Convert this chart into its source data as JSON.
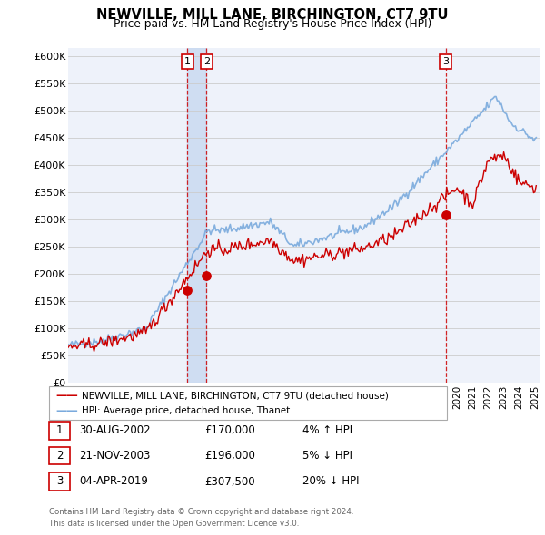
{
  "title": "NEWVILLE, MILL LANE, BIRCHINGTON, CT7 9TU",
  "subtitle": "Price paid vs. HM Land Registry's House Price Index (HPI)",
  "ylabel_ticks": [
    "£0",
    "£50K",
    "£100K",
    "£150K",
    "£200K",
    "£250K",
    "£300K",
    "£350K",
    "£400K",
    "£450K",
    "£500K",
    "£550K",
    "£600K"
  ],
  "ytick_values": [
    0,
    50000,
    100000,
    150000,
    200000,
    250000,
    300000,
    350000,
    400000,
    450000,
    500000,
    550000,
    600000
  ],
  "ylim": [
    0,
    615000
  ],
  "xlim_start": 1995.0,
  "xlim_end": 2025.3,
  "legend_line1": "NEWVILLE, MILL LANE, BIRCHINGTON, CT7 9TU (detached house)",
  "legend_line2": "HPI: Average price, detached house, Thanet",
  "transactions": [
    {
      "label": "1",
      "date": "30-AUG-2002",
      "price": 170000,
      "pct": "4%",
      "dir": "↑",
      "x": 2002.66
    },
    {
      "label": "2",
      "date": "21-NOV-2003",
      "price": 196000,
      "pct": "5%",
      "dir": "↓",
      "x": 2003.89
    },
    {
      "label": "3",
      "date": "04-APR-2019",
      "price": 307500,
      "pct": "20%",
      "dir": "↓",
      "x": 2019.26
    }
  ],
  "footer_line1": "Contains HM Land Registry data © Crown copyright and database right 2024.",
  "footer_line2": "This data is licensed under the Open Government Licence v3.0.",
  "hpi_color": "#7aaadd",
  "price_color": "#cc0000",
  "bg_color": "#eef2fa",
  "grid_color": "#cccccc",
  "vline_color": "#cc0000",
  "shade_color": "#c8d8f0"
}
